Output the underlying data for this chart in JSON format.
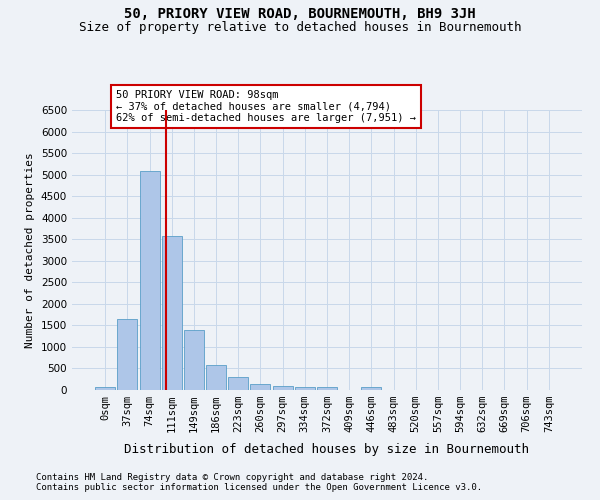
{
  "title": "50, PRIORY VIEW ROAD, BOURNEMOUTH, BH9 3JH",
  "subtitle": "Size of property relative to detached houses in Bournemouth",
  "xlabel": "Distribution of detached houses by size in Bournemouth",
  "ylabel": "Number of detached properties",
  "footnote1": "Contains HM Land Registry data © Crown copyright and database right 2024.",
  "footnote2": "Contains public sector information licensed under the Open Government Licence v3.0.",
  "bar_labels": [
    "0sqm",
    "37sqm",
    "74sqm",
    "111sqm",
    "149sqm",
    "186sqm",
    "223sqm",
    "260sqm",
    "297sqm",
    "334sqm",
    "372sqm",
    "409sqm",
    "446sqm",
    "483sqm",
    "520sqm",
    "557sqm",
    "594sqm",
    "632sqm",
    "669sqm",
    "706sqm",
    "743sqm"
  ],
  "bar_values": [
    80,
    1640,
    5080,
    3580,
    1400,
    590,
    300,
    150,
    100,
    80,
    65,
    0,
    65,
    0,
    0,
    0,
    0,
    0,
    0,
    0,
    0
  ],
  "bar_color": "#aec6e8",
  "bar_edge_color": "#5a9fc8",
  "property_line_x": 2.72,
  "annotation_text": "50 PRIORY VIEW ROAD: 98sqm\n← 37% of detached houses are smaller (4,794)\n62% of semi-detached houses are larger (7,951) →",
  "ylim_max": 6500,
  "yticks": [
    0,
    500,
    1000,
    1500,
    2000,
    2500,
    3000,
    3500,
    4000,
    4500,
    5000,
    5500,
    6000,
    6500
  ],
  "grid_color": "#c8d8ea",
  "background_color": "#eef2f7",
  "annotation_box_facecolor": "#ffffff",
  "annotation_box_edgecolor": "#cc0000",
  "line_color": "#cc0000",
  "title_fontsize": 10,
  "subtitle_fontsize": 9,
  "ylabel_fontsize": 8,
  "xlabel_fontsize": 9,
  "tick_fontsize": 7.5,
  "annot_fontsize": 7.5,
  "footnote_fontsize": 6.5
}
